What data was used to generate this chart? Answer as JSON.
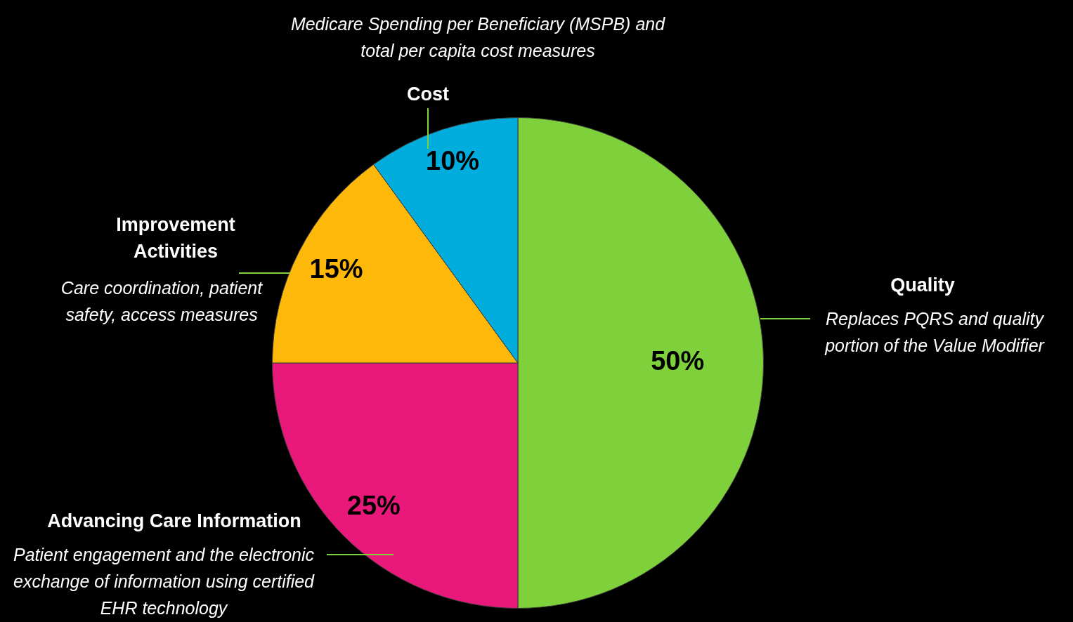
{
  "chart_data": {
    "type": "pie",
    "categories": [
      "Quality",
      "Advancing Care Information",
      "Improvement Activities",
      "Cost"
    ],
    "values": [
      50,
      25,
      15,
      10
    ],
    "colors": [
      "#7fd13b",
      "#e8197a",
      "#feb80a",
      "#00addc"
    ],
    "value_labels": [
      "50%",
      "25%",
      "15%",
      "10%"
    ],
    "annotations": [
      "Replaces PQRS and quality portion of the Value Modifier",
      "Patient engagement and the electronic exchange of information using certified EHR technology",
      "Care coordination, patient safety, access measures",
      "Medicare Spending per Beneficiary (MSPB) and total per capita cost measures"
    ],
    "legend": false
  }
}
